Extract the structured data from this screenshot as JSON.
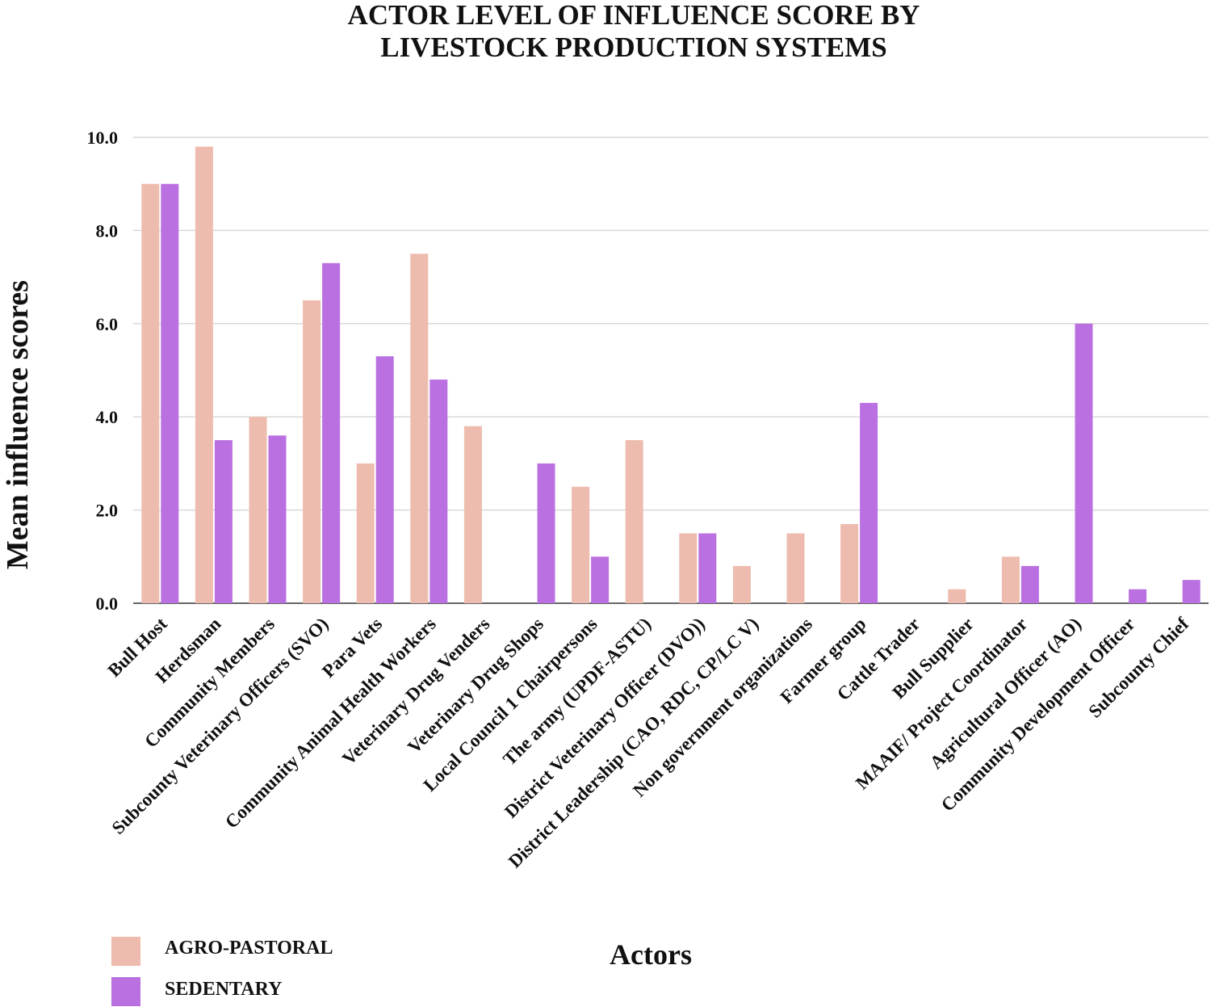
{
  "chart_data": {
    "type": "bar",
    "title": [
      "ACTOR LEVEL OF INFLUENCE SCORE BY",
      "LIVESTOCK PRODUCTION SYSTEMS"
    ],
    "xlabel": "Actors",
    "ylabel": "Mean influence scores",
    "ylim": [
      0,
      10
    ],
    "yticks": [
      "0.0",
      "2.0",
      "4.0",
      "6.0",
      "8.0",
      "10.0"
    ],
    "ytick_values": [
      0,
      2,
      4,
      6,
      8,
      10
    ],
    "grid": true,
    "legend_position": "bottom-left",
    "categories": [
      "Bull Host",
      "Herdsman",
      "Community Members",
      "Subcounty Veterinary Officers (SVO)",
      "Para Vets",
      "Community Animal Health Workers",
      "Veterinary Drug Venders",
      "Veterinary Drug Shops",
      "Local Council 1 Chairpersons",
      "The army (UPDF-ASTU)",
      "District Veterinary Officer (DVO))",
      "District Leadership (CAO, RDC, CP/LC V)",
      "Non government organizations",
      "Farmer group",
      "Cattle Trader",
      "Bull Supplier",
      "MAAIF/ Project Coordinator",
      "Agricultural Officer (AO)",
      "Community Development Officer",
      "Subcounty Chief"
    ],
    "series": [
      {
        "name": "AGRO-PASTORAL",
        "color": "#eebcaf",
        "values": [
          9.0,
          9.8,
          4.0,
          6.5,
          3.0,
          7.5,
          3.8,
          0,
          2.5,
          3.5,
          1.5,
          0.8,
          1.5,
          1.7,
          0,
          0.3,
          1.0,
          0,
          0,
          0
        ]
      },
      {
        "name": "SEDENTARY",
        "color": "#bb70e2",
        "values": [
          9.0,
          3.5,
          3.6,
          7.3,
          5.3,
          4.8,
          0,
          3.0,
          1.0,
          0,
          1.5,
          0,
          0,
          4.3,
          0,
          0,
          0.8,
          6.0,
          0.3,
          0.5
        ]
      }
    ]
  }
}
